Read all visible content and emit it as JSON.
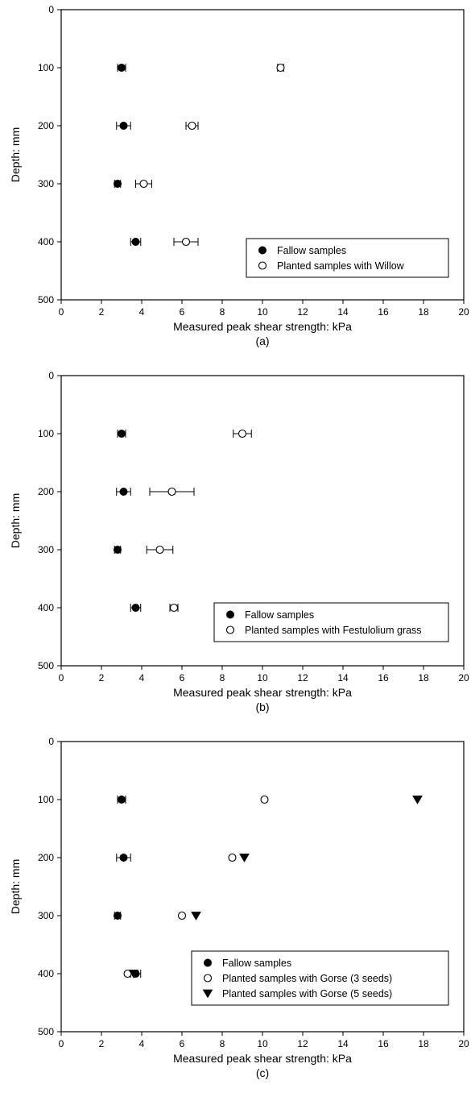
{
  "chart_data": [
    {
      "type": "scatter",
      "panel_label": "(a)",
      "xlabel": "Measured peak shear strength: kPa",
      "ylabel": "Depth: mm",
      "xlim": [
        0,
        20
      ],
      "ylim": [
        0,
        500
      ],
      "y_axis_inverted": true,
      "x_ticks": [
        0,
        2,
        4,
        6,
        8,
        10,
        12,
        14,
        16,
        18,
        20
      ],
      "y_ticks": [
        0,
        100,
        200,
        300,
        400,
        500
      ],
      "grid": false,
      "legend_position": "bottom-right",
      "series": [
        {
          "name": "Fallow samples",
          "marker": "filled-circle",
          "color": "#000000",
          "points": [
            {
              "x": 3.0,
              "y": 100,
              "xerr": 0.2
            },
            {
              "x": 3.1,
              "y": 200,
              "xerr": 0.35
            },
            {
              "x": 2.8,
              "y": 300,
              "xerr": 0.15
            },
            {
              "x": 3.7,
              "y": 400,
              "xerr": 0.25
            }
          ]
        },
        {
          "name": "Planted samples with Willow",
          "marker": "open-circle",
          "color": "#000000",
          "points": [
            {
              "x": 10.9,
              "y": 100,
              "xerr": 0.15
            },
            {
              "x": 6.5,
              "y": 200,
              "xerr": 0.3
            },
            {
              "x": 4.1,
              "y": 300,
              "xerr": 0.4
            },
            {
              "x": 6.2,
              "y": 400,
              "xerr": 0.6
            }
          ]
        }
      ]
    },
    {
      "type": "scatter",
      "panel_label": "(b)",
      "xlabel": "Measured peak shear strength: kPa",
      "ylabel": "Depth: mm",
      "xlim": [
        0,
        20
      ],
      "ylim": [
        0,
        500
      ],
      "y_axis_inverted": true,
      "x_ticks": [
        0,
        2,
        4,
        6,
        8,
        10,
        12,
        14,
        16,
        18,
        20
      ],
      "y_ticks": [
        0,
        100,
        200,
        300,
        400,
        500
      ],
      "grid": false,
      "legend_position": "bottom-right",
      "series": [
        {
          "name": "Fallow samples",
          "marker": "filled-circle",
          "color": "#000000",
          "points": [
            {
              "x": 3.0,
              "y": 100,
              "xerr": 0.2
            },
            {
              "x": 3.1,
              "y": 200,
              "xerr": 0.35
            },
            {
              "x": 2.8,
              "y": 300,
              "xerr": 0.15
            },
            {
              "x": 3.7,
              "y": 400,
              "xerr": 0.25
            }
          ]
        },
        {
          "name": "Planted samples with Festulolium grass",
          "marker": "open-circle",
          "color": "#000000",
          "points": [
            {
              "x": 9.0,
              "y": 100,
              "xerr": 0.45
            },
            {
              "x": 5.5,
              "y": 200,
              "xerr": 1.1
            },
            {
              "x": 4.9,
              "y": 300,
              "xerr": 0.65
            },
            {
              "x": 5.6,
              "y": 400,
              "xerr": 0.2
            }
          ]
        }
      ]
    },
    {
      "type": "scatter",
      "panel_label": "(c)",
      "xlabel": "Measured peak shear strength: kPa",
      "ylabel": "Depth: mm",
      "xlim": [
        0,
        20
      ],
      "ylim": [
        0,
        500
      ],
      "y_axis_inverted": true,
      "x_ticks": [
        0,
        2,
        4,
        6,
        8,
        10,
        12,
        14,
        16,
        18,
        20
      ],
      "y_ticks": [
        0,
        100,
        200,
        300,
        400,
        500
      ],
      "grid": false,
      "legend_position": "bottom-right",
      "series": [
        {
          "name": "Fallow samples",
          "marker": "filled-circle",
          "color": "#000000",
          "points": [
            {
              "x": 3.0,
              "y": 100,
              "xerr": 0.2
            },
            {
              "x": 3.1,
              "y": 200,
              "xerr": 0.35
            },
            {
              "x": 2.8,
              "y": 300,
              "xerr": 0.15
            },
            {
              "x": 3.7,
              "y": 400,
              "xerr": 0.25
            }
          ]
        },
        {
          "name": "Planted samples with Gorse (3 seeds)",
          "marker": "open-circle",
          "color": "#000000",
          "points": [
            {
              "x": 10.1,
              "y": 100,
              "xerr": 0
            },
            {
              "x": 8.5,
              "y": 200,
              "xerr": 0
            },
            {
              "x": 6.0,
              "y": 300,
              "xerr": 0
            },
            {
              "x": 3.3,
              "y": 400,
              "xerr": 0
            }
          ]
        },
        {
          "name": "Planted samples with Gorse (5 seeds)",
          "marker": "filled-triangle-down",
          "color": "#000000",
          "points": [
            {
              "x": 17.7,
              "y": 100,
              "xerr": 0
            },
            {
              "x": 9.1,
              "y": 200,
              "xerr": 0
            },
            {
              "x": 6.7,
              "y": 300,
              "xerr": 0
            },
            {
              "x": 3.6,
              "y": 400,
              "xerr": 0
            }
          ]
        }
      ]
    }
  ]
}
